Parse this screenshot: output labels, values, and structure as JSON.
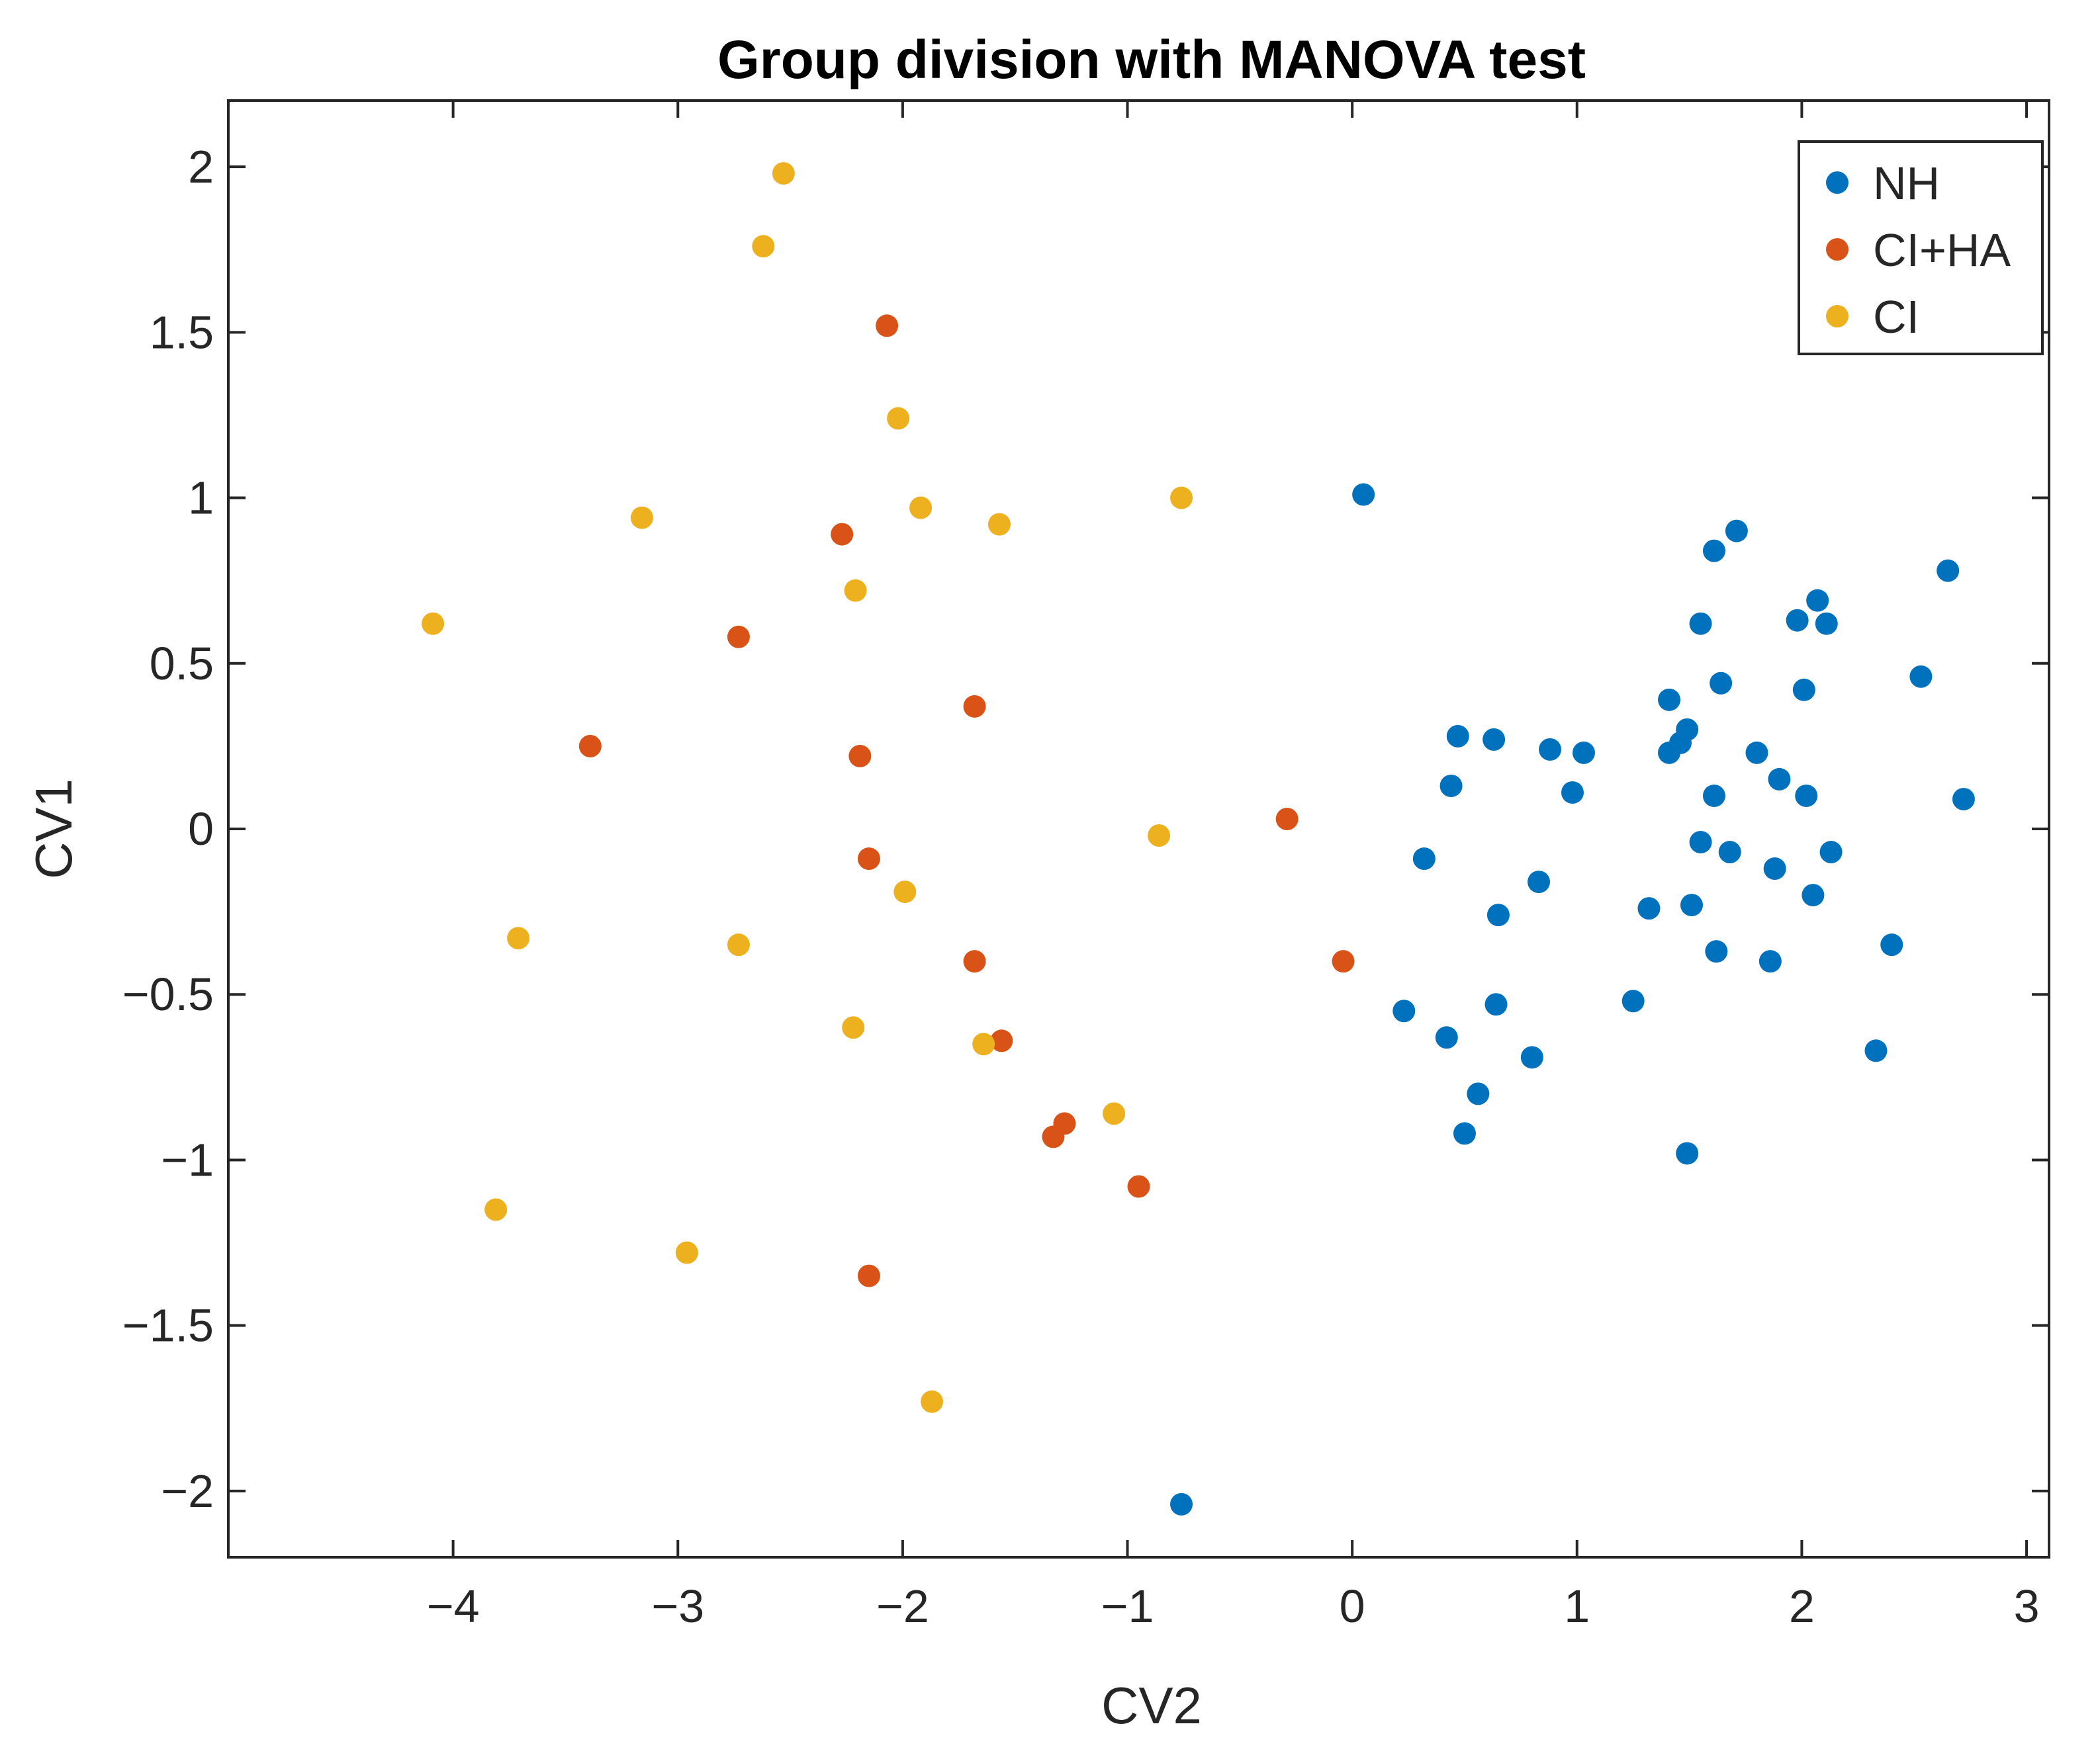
{
  "chart_data": {
    "type": "scatter",
    "title": "Group division with MANOVA test",
    "xlabel": "CV2",
    "ylabel": "CV1",
    "xlim": [
      -5,
      3.1
    ],
    "ylim": [
      -2.2,
      2.2
    ],
    "xticks": [
      -4,
      -3,
      -2,
      -1,
      0,
      1,
      2,
      3
    ],
    "yticks": [
      -2,
      -1.5,
      -1,
      -0.5,
      0,
      0.5,
      1,
      1.5,
      2
    ],
    "xtick_labels": [
      "−4",
      "−3",
      "−2",
      "−1",
      "0",
      "1",
      "2",
      "3"
    ],
    "ytick_labels": [
      "−2",
      "−1.5",
      "−1",
      "−0.5",
      "0",
      "0.5",
      "1",
      "1.5",
      "2"
    ],
    "legend_position": "top-right",
    "series": [
      {
        "name": "NH",
        "color": "#0072BD",
        "points": [
          [
            0.05,
            1.01
          ],
          [
            0.47,
            0.28
          ],
          [
            0.63,
            0.27
          ],
          [
            0.44,
            0.13
          ],
          [
            0.32,
            -0.09
          ],
          [
            0.65,
            -0.26
          ],
          [
            0.88,
            0.24
          ],
          [
            1.03,
            0.23
          ],
          [
            0.98,
            0.11
          ],
          [
            0.83,
            -0.16
          ],
          [
            0.23,
            -0.55
          ],
          [
            0.42,
            -0.63
          ],
          [
            0.64,
            -0.53
          ],
          [
            0.8,
            -0.69
          ],
          [
            0.56,
            -0.8
          ],
          [
            0.5,
            -0.92
          ],
          [
            1.25,
            -0.52
          ],
          [
            1.32,
            -0.24
          ],
          [
            1.41,
            0.39
          ],
          [
            1.41,
            0.23
          ],
          [
            1.46,
            0.26
          ],
          [
            1.49,
            0.3
          ],
          [
            1.51,
            -0.23
          ],
          [
            1.55,
            0.62
          ],
          [
            1.55,
            -0.04
          ],
          [
            1.61,
            0.84
          ],
          [
            1.61,
            0.1
          ],
          [
            1.62,
            -0.37
          ],
          [
            1.64,
            0.44
          ],
          [
            1.68,
            -0.07
          ],
          [
            1.71,
            0.9
          ],
          [
            1.8,
            0.23
          ],
          [
            1.86,
            -0.4
          ],
          [
            1.88,
            -0.12
          ],
          [
            1.9,
            0.15
          ],
          [
            1.98,
            0.63
          ],
          [
            2.01,
            0.42
          ],
          [
            2.02,
            0.1
          ],
          [
            2.05,
            -0.2
          ],
          [
            2.07,
            0.69
          ],
          [
            2.11,
            0.62
          ],
          [
            2.13,
            -0.07
          ],
          [
            2.33,
            -0.67
          ],
          [
            2.4,
            -0.35
          ],
          [
            2.53,
            0.46
          ],
          [
            2.65,
            0.78
          ],
          [
            2.72,
            0.09
          ],
          [
            1.49,
            -0.98
          ],
          [
            -0.76,
            -2.04
          ]
        ]
      },
      {
        "name": "CI+HA",
        "color": "#D95319",
        "points": [
          [
            -2.07,
            1.52
          ],
          [
            -2.27,
            0.89
          ],
          [
            -2.73,
            0.58
          ],
          [
            -3.39,
            0.25
          ],
          [
            -1.68,
            0.37
          ],
          [
            -2.19,
            0.22
          ],
          [
            -2.15,
            -0.09
          ],
          [
            -0.29,
            0.03
          ],
          [
            -1.68,
            -0.4
          ],
          [
            -0.04,
            -0.4
          ],
          [
            -1.56,
            -0.64
          ],
          [
            -1.28,
            -0.89
          ],
          [
            -1.33,
            -0.93
          ],
          [
            -0.95,
            -1.08
          ],
          [
            -2.15,
            -1.35
          ]
        ]
      },
      {
        "name": "CI",
        "color": "#EDB120",
        "points": [
          [
            -2.53,
            1.98
          ],
          [
            -2.62,
            1.76
          ],
          [
            -2.02,
            1.24
          ],
          [
            -1.92,
            0.97
          ],
          [
            -1.57,
            0.92
          ],
          [
            -0.76,
            1.0
          ],
          [
            -3.16,
            0.94
          ],
          [
            -2.21,
            0.72
          ],
          [
            -4.09,
            0.62
          ],
          [
            -0.86,
            -0.02
          ],
          [
            -1.99,
            -0.19
          ],
          [
            -3.71,
            -0.33
          ],
          [
            -2.73,
            -0.35
          ],
          [
            -2.22,
            -0.6
          ],
          [
            -1.64,
            -0.65
          ],
          [
            -1.06,
            -0.86
          ],
          [
            -3.81,
            -1.15
          ],
          [
            -2.96,
            -1.28
          ],
          [
            -1.87,
            -1.73
          ]
        ]
      }
    ]
  }
}
